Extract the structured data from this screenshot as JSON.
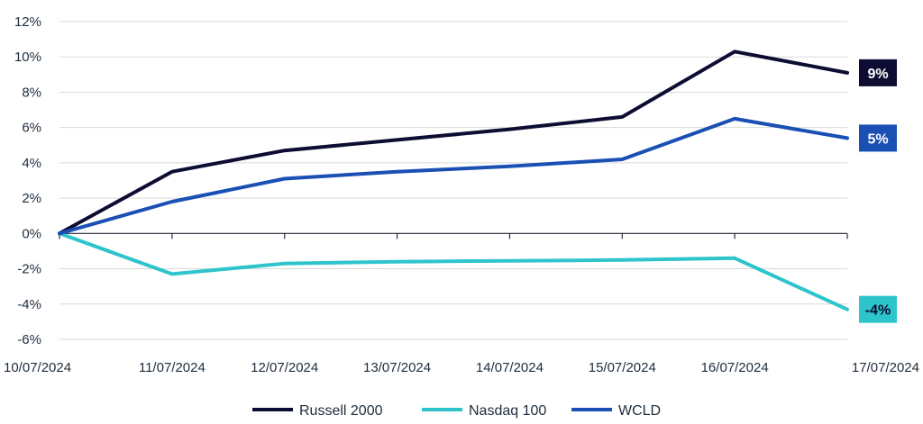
{
  "chart_data": {
    "type": "line",
    "title": "",
    "xlabel": "",
    "ylabel": "",
    "categories": [
      "10/07/2024",
      "11/07/2024",
      "12/07/2024",
      "13/07/2024",
      "14/07/2024",
      "15/07/2024",
      "16/07/2024",
      "17/07/2024"
    ],
    "ylim": [
      -6,
      12
    ],
    "yticks": [
      -6,
      -4,
      -2,
      0,
      2,
      4,
      6,
      8,
      10,
      12
    ],
    "ytick_labels": [
      "-6%",
      "-4%",
      "-2%",
      "0%",
      "2%",
      "4%",
      "6%",
      "8%",
      "10%",
      "12%"
    ],
    "grid": true,
    "legend_position": "bottom",
    "series": [
      {
        "name": "Russell 2000",
        "color": "#0d0d33",
        "values": [
          0,
          3.5,
          4.7,
          5.3,
          5.9,
          6.6,
          10.3,
          9.1
        ],
        "end_label": "9%",
        "end_label_text_color": "#ffffff"
      },
      {
        "name": "Nasdaq 100",
        "color": "#2ec4cc",
        "values": [
          0,
          -2.3,
          -1.7,
          -1.6,
          -1.55,
          -1.5,
          -1.4,
          -4.3
        ],
        "end_label": "-4%",
        "end_label_text_color": "#0d0d33"
      },
      {
        "name": "WCLD",
        "color": "#1a4fb4",
        "values": [
          0,
          1.8,
          3.1,
          3.5,
          3.8,
          4.2,
          6.5,
          5.4
        ],
        "end_label": "5%",
        "end_label_text_color": "#ffffff"
      }
    ]
  }
}
